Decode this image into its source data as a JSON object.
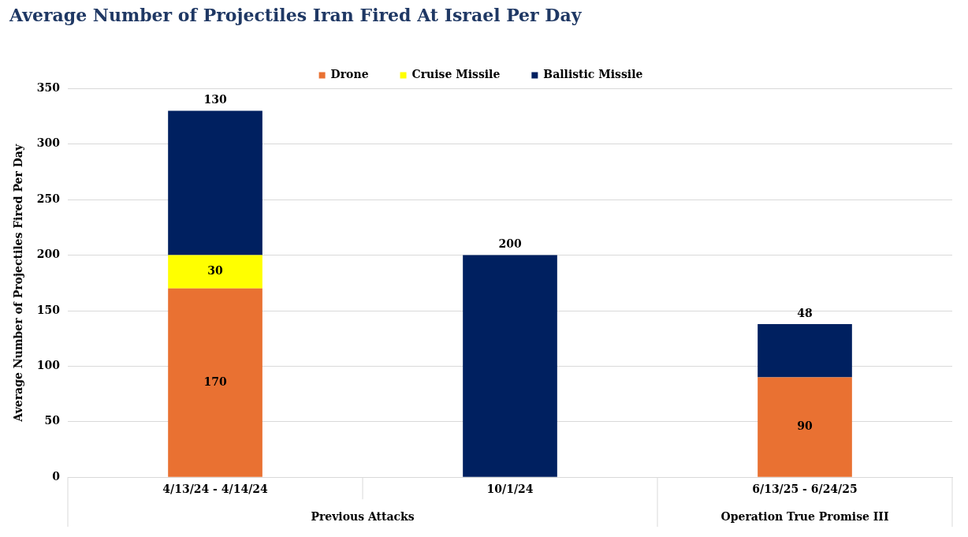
{
  "chart_data": {
    "type": "bar",
    "title": "Average Number of Projectiles Iran Fired At Israel Per Day",
    "ylabel": "Average Number of Projectiles Fired Per Day",
    "categories": [
      "4/13/24 - 4/14/24",
      "10/1/24",
      "6/13/25 - 6/24/25"
    ],
    "series": [
      {
        "name": "Drone",
        "color": "#e97132",
        "values": [
          170,
          null,
          90
        ]
      },
      {
        "name": "Cruise Missile",
        "color": "#ffff00",
        "values": [
          30,
          null,
          null
        ]
      },
      {
        "name": "Ballistic Missile",
        "color": "#002060",
        "values": [
          130,
          200,
          48
        ]
      }
    ],
    "stacked": true,
    "ylim": [
      0,
      350
    ],
    "yticks": [
      0,
      50,
      100,
      150,
      200,
      250,
      300,
      350
    ],
    "grid": "y",
    "legend": "top",
    "data_labels": true,
    "annotations": [
      "Previous Attacks",
      "Operation True Promise III"
    ]
  }
}
